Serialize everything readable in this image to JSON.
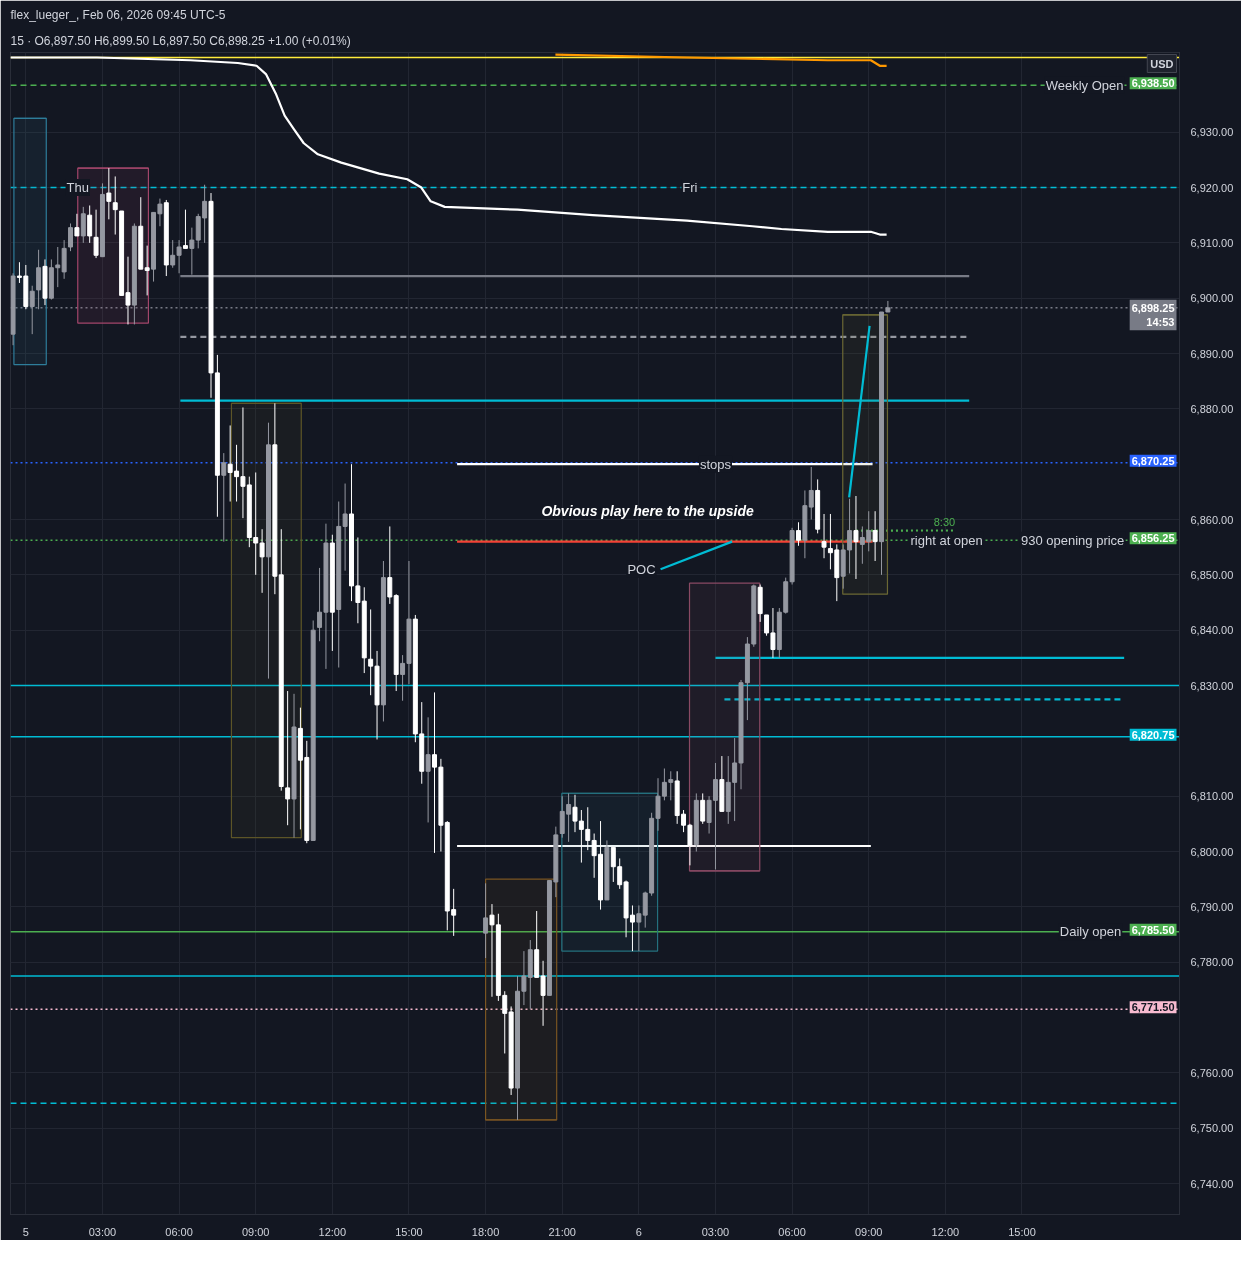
{
  "chart_data": {
    "type": "candlestick",
    "title": "flex_lueger_, Feb 06, 2026 09:45 UTC-5",
    "subtitle": "15 · O6,897.50 H6,899.50 L6,897.50 C6,898.25 +1.00 (+0.01%)",
    "ylabel": "USD",
    "x": [
      "2026-02-04T23:30",
      "2026-02-04T23:45",
      "2026-02-05T00:00",
      "2026-02-05T00:15",
      "2026-02-05T00:30",
      "2026-02-05T00:45",
      "2026-02-05T01:00",
      "2026-02-05T01:15",
      "2026-02-05T01:30",
      "2026-02-05T01:45",
      "2026-02-05T02:00",
      "2026-02-05T02:15",
      "2026-02-05T02:30",
      "2026-02-05T02:45",
      "2026-02-05T03:00",
      "2026-02-05T03:15",
      "2026-02-05T03:30",
      "2026-02-05T03:45",
      "2026-02-05T04:00",
      "2026-02-05T04:15",
      "2026-02-05T04:30",
      "2026-02-05T04:45",
      "2026-02-05T05:00",
      "2026-02-05T05:15",
      "2026-02-05T05:30",
      "2026-02-05T05:45",
      "2026-02-05T06:00",
      "2026-02-05T06:15",
      "2026-02-05T06:30",
      "2026-02-05T06:45",
      "2026-02-05T07:00",
      "2026-02-05T07:15",
      "2026-02-05T07:30",
      "2026-02-05T07:45",
      "2026-02-05T08:00",
      "2026-02-05T08:15",
      "2026-02-05T08:30",
      "2026-02-05T08:45",
      "2026-02-05T09:00",
      "2026-02-05T09:15",
      "2026-02-05T09:30",
      "2026-02-05T09:45",
      "2026-02-05T10:00",
      "2026-02-05T10:15",
      "2026-02-05T10:30",
      "2026-02-05T10:45",
      "2026-02-05T11:00",
      "2026-02-05T11:15",
      "2026-02-05T11:30",
      "2026-02-05T11:45",
      "2026-02-05T12:00",
      "2026-02-05T12:15",
      "2026-02-05T12:30",
      "2026-02-05T12:45",
      "2026-02-05T13:00",
      "2026-02-05T13:15",
      "2026-02-05T13:30",
      "2026-02-05T13:45",
      "2026-02-05T14:00",
      "2026-02-05T14:15",
      "2026-02-05T14:30",
      "2026-02-05T14:45",
      "2026-02-05T15:00",
      "2026-02-05T15:15",
      "2026-02-05T15:30",
      "2026-02-05T15:45",
      "2026-02-05T16:00",
      "2026-02-05T16:15",
      "2026-02-05T16:30",
      "2026-02-05T16:45",
      "2026-02-05T18:00",
      "2026-02-05T18:15",
      "2026-02-05T18:30",
      "2026-02-05T18:45",
      "2026-02-05T19:00",
      "2026-02-05T19:15",
      "2026-02-05T19:30",
      "2026-02-05T19:45",
      "2026-02-05T20:00",
      "2026-02-05T20:15",
      "2026-02-05T20:30",
      "2026-02-05T20:45",
      "2026-02-05T21:00",
      "2026-02-05T21:15",
      "2026-02-05T21:30",
      "2026-02-05T21:45",
      "2026-02-05T22:00",
      "2026-02-05T22:15",
      "2026-02-05T22:30",
      "2026-02-05T22:45",
      "2026-02-05T23:00",
      "2026-02-05T23:15",
      "2026-02-05T23:30",
      "2026-02-05T23:45",
      "2026-02-06T00:00",
      "2026-02-06T00:15",
      "2026-02-06T00:30",
      "2026-02-06T00:45",
      "2026-02-06T01:00",
      "2026-02-06T01:15",
      "2026-02-06T01:30",
      "2026-02-06T01:45",
      "2026-02-06T02:00",
      "2026-02-06T02:15",
      "2026-02-06T02:30",
      "2026-02-06T02:45",
      "2026-02-06T03:00",
      "2026-02-06T03:15",
      "2026-02-06T03:30",
      "2026-02-06T03:45",
      "2026-02-06T04:00",
      "2026-02-06T04:15",
      "2026-02-06T04:30",
      "2026-02-06T04:45",
      "2026-02-06T05:00",
      "2026-02-06T05:15",
      "2026-02-06T05:30",
      "2026-02-06T05:45",
      "2026-02-06T06:00",
      "2026-02-06T06:15",
      "2026-02-06T06:30",
      "2026-02-06T06:45",
      "2026-02-06T07:00",
      "2026-02-06T07:15",
      "2026-02-06T07:30",
      "2026-02-06T07:45",
      "2026-02-06T08:00",
      "2026-02-06T08:15",
      "2026-02-06T08:30",
      "2026-02-06T08:45",
      "2026-02-06T09:00",
      "2026-02-06T09:15",
      "2026-02-06T09:30",
      "2026-02-06T09:45"
    ],
    "ohlc": [
      [
        6893.5,
        6904.5,
        6891.5,
        6904
      ],
      [
        6904,
        6906.5,
        6902.75,
        6903.75
      ],
      [
        6904,
        6906,
        6898,
        6898.5
      ],
      [
        6898.5,
        6902.25,
        6893.5,
        6901.25
      ],
      [
        6901.5,
        6908.75,
        6898,
        6905.5
      ],
      [
        6905.75,
        6907,
        6898.75,
        6900
      ],
      [
        6900,
        6907,
        6899.75,
        6905.5
      ],
      [
        6905.5,
        6909.25,
        6902,
        6906
      ],
      [
        6904.75,
        6910.5,
        6903.5,
        6909
      ],
      [
        6909.25,
        6913.5,
        6908.5,
        6912.75
      ],
      [
        6912.75,
        6915.25,
        6911.25,
        6911.25
      ],
      [
        6911.25,
        6916.5,
        6910,
        6915.25
      ],
      [
        6915,
        6916.75,
        6910,
        6911.25
      ],
      [
        6911,
        6916,
        6907.25,
        6907.75
      ],
      [
        6907.5,
        6920.75,
        6907.5,
        6918.75
      ],
      [
        6919,
        6923.5,
        6914.25,
        6917.5
      ],
      [
        6917.25,
        6922,
        6911.5,
        6916
      ],
      [
        6915.75,
        6915.75,
        6900.5,
        6900.5
      ],
      [
        6901,
        6907.5,
        6895.25,
        6898.75
      ],
      [
        6898.75,
        6913.5,
        6895.25,
        6913
      ],
      [
        6913,
        6918.25,
        6905.25,
        6905.25
      ],
      [
        6905.5,
        6909.5,
        6900.5,
        6905
      ],
      [
        6905.25,
        6915.5,
        6903,
        6915.5
      ],
      [
        6915.25,
        6918,
        6913,
        6917
      ],
      [
        6917.25,
        6917.75,
        6904,
        6906
      ],
      [
        6906,
        6910.5,
        6905.5,
        6907.75
      ],
      [
        6907.75,
        6910.5,
        6904.5,
        6909.25
      ],
      [
        6909.5,
        6916,
        6909,
        6909
      ],
      [
        6909,
        6912.75,
        6904.25,
        6910.5
      ],
      [
        6910.5,
        6915.25,
        6909,
        6914.75
      ],
      [
        6914.5,
        6920.5,
        6910,
        6917.5
      ],
      [
        6917.5,
        6919,
        6882,
        6886.5
      ],
      [
        6886.5,
        6889.75,
        6860.5,
        6868
      ],
      [
        6868,
        6872,
        6856,
        6870.25
      ],
      [
        6870,
        6877,
        6863.25,
        6868.5
      ],
      [
        6868.75,
        6873.5,
        6863.25,
        6867.75
      ],
      [
        6867.75,
        6880.25,
        6860.25,
        6866
      ],
      [
        6866.25,
        6867.75,
        6855,
        6856.75
      ],
      [
        6856.75,
        6868.5,
        6850,
        6855.75
      ],
      [
        6855.75,
        6858.25,
        6846.75,
        6853.25
      ],
      [
        6853.25,
        6877.5,
        6831.25,
        6873.5
      ],
      [
        6873.5,
        6881,
        6846.5,
        6849.75
      ],
      [
        6850,
        6858.25,
        6811,
        6811.75
      ],
      [
        6811.5,
        6829,
        6804.75,
        6809.5
      ],
      [
        6809.5,
        6828.5,
        6802.5,
        6822.5
      ],
      [
        6822.25,
        6826,
        6804,
        6816.5
      ],
      [
        6817,
        6820,
        6801.5,
        6802
      ],
      [
        6802,
        6841.75,
        6802,
        6840
      ],
      [
        6840.5,
        6851.25,
        6838,
        6843.25
      ],
      [
        6843.25,
        6859.25,
        6833,
        6855.75
      ],
      [
        6855.75,
        6857.25,
        6836.25,
        6843.25
      ],
      [
        6843.75,
        6863.25,
        6833.25,
        6858.75
      ],
      [
        6858.75,
        6866.5,
        6850.75,
        6861
      ],
      [
        6861,
        6870,
        6845.25,
        6848
      ],
      [
        6848,
        6856.75,
        6841.25,
        6845
      ],
      [
        6845.25,
        6847.75,
        6832.25,
        6835
      ],
      [
        6834.75,
        6843.75,
        6828.25,
        6833.5
      ],
      [
        6833.5,
        6836.25,
        6820.25,
        6826.5
      ],
      [
        6826.5,
        6852.5,
        6823.5,
        6849.5
      ],
      [
        6849.5,
        6858.75,
        6844.75,
        6846
      ],
      [
        6846.25,
        6846.5,
        6829,
        6832
      ],
      [
        6832,
        6835.5,
        6827.25,
        6834
      ],
      [
        6834,
        6852.5,
        6830.25,
        6842
      ],
      [
        6842,
        6842.75,
        6819.75,
        6821.25
      ],
      [
        6821.25,
        6827,
        6812.25,
        6814.5
      ],
      [
        6814.5,
        6824.25,
        6805.25,
        6817.5
      ],
      [
        6817.5,
        6828.75,
        6799.75,
        6815.25
      ],
      [
        6815.25,
        6816.75,
        6800,
        6804.75
      ],
      [
        6805.25,
        6805.5,
        6785.75,
        6789.25
      ],
      [
        6789.5,
        6793.25,
        6784.75,
        6788.5
      ],
      [
        6785.25,
        6794.25,
        6780.75,
        6788
      ],
      [
        6788.5,
        6790.5,
        6773.75,
        6786.75
      ],
      [
        6786.75,
        6788.75,
        6773,
        6774
      ],
      [
        6774,
        6774.75,
        6763.5,
        6770.75
      ],
      [
        6771,
        6772,
        6756,
        6757.25
      ],
      [
        6757.25,
        6777.5,
        6751.5,
        6774.75
      ],
      [
        6774.75,
        6782,
        6772.25,
        6777.5
      ],
      [
        6777.25,
        6784,
        6771.5,
        6782.25
      ],
      [
        6782.25,
        6789.25,
        6777.25,
        6777.25
      ],
      [
        6777.5,
        6780.25,
        6768.5,
        6774
      ],
      [
        6774,
        6794.75,
        6774,
        6794.75
      ],
      [
        6794.5,
        6804.5,
        6791.75,
        6803
      ],
      [
        6803.25,
        6810,
        6802.5,
        6807.25
      ],
      [
        6806.75,
        6810.5,
        6801.75,
        6808.5
      ],
      [
        6808,
        6810.25,
        6803.5,
        6805.5
      ],
      [
        6805.5,
        6807.5,
        6798,
        6804
      ],
      [
        6804,
        6808,
        6800.25,
        6802
      ],
      [
        6802,
        6803.25,
        6795.25,
        6799.25
      ],
      [
        6799.5,
        6805.5,
        6789.5,
        6791.25
      ],
      [
        6791.25,
        6802,
        6791.25,
        6800.75
      ],
      [
        6800.75,
        6800.75,
        6794.5,
        6797.25
      ],
      [
        6797.25,
        6798.75,
        6793.25,
        6794
      ],
      [
        6794.5,
        6794.75,
        6784.5,
        6788
      ],
      [
        6788.5,
        6790.25,
        6782,
        6787.25
      ],
      [
        6787.25,
        6790.25,
        6782,
        6788.75
      ],
      [
        6788.5,
        6792.75,
        6786.25,
        6792.5
      ],
      [
        6792.5,
        6807,
        6792,
        6806
      ],
      [
        6806,
        6813.25,
        6803.75,
        6810
      ],
      [
        6810,
        6815,
        6809.25,
        6812.5
      ],
      [
        6812.5,
        6814.5,
        6809.25,
        6813
      ],
      [
        6812.75,
        6814.5,
        6805,
        6806.5
      ],
      [
        6806.75,
        6807.5,
        6803.5,
        6804.75
      ],
      [
        6804.75,
        6805,
        6797.5,
        6801
      ],
      [
        6801.25,
        6810.5,
        6800,
        6809.25
      ],
      [
        6809.25,
        6810.5,
        6805,
        6805.5
      ],
      [
        6805.25,
        6810,
        6803.25,
        6809.25
      ],
      [
        6809.25,
        6816,
        6796.75,
        6813
      ],
      [
        6813,
        6817.25,
        6807.25,
        6807.25
      ],
      [
        6807.25,
        6817.25,
        6805,
        6812.5
      ],
      [
        6812.5,
        6820.5,
        6805.5,
        6816
      ],
      [
        6816,
        6831,
        6811.25,
        6830.5
      ],
      [
        6830.5,
        6838.75,
        6823.75,
        6837.5
      ],
      [
        6837.5,
        6848.25,
        6837,
        6848
      ],
      [
        6847.75,
        6848.25,
        6841.5,
        6843
      ],
      [
        6842.75,
        6842.75,
        6839,
        6839.5
      ],
      [
        6839.5,
        6844,
        6835,
        6836.5
      ],
      [
        6836.5,
        6844,
        6835,
        6843.25
      ],
      [
        6843.25,
        6849.5,
        6843,
        6848.75
      ],
      [
        6848.75,
        6858.5,
        6848.25,
        6858
      ],
      [
        6858,
        6859.5,
        6855.25,
        6856.25
      ],
      [
        6856.25,
        6865.25,
        6853,
        6862.5
      ],
      [
        6862.25,
        6869.5,
        6860,
        6865.25
      ],
      [
        6865.25,
        6867.25,
        6857.5,
        6858.25
      ],
      [
        6856,
        6861,
        6853,
        6855
      ],
      [
        6854.75,
        6861,
        6851,
        6854
      ],
      [
        6854.5,
        6855.5,
        6845.25,
        6849.5
      ],
      [
        6849.75,
        6855.5,
        6847.5,
        6854.5
      ],
      [
        6854.5,
        6863.75,
        6850.25,
        6858
      ],
      [
        6858,
        6864.25,
        6849.25,
        6856
      ],
      [
        6855.5,
        6858.75,
        6852,
        6856.75
      ],
      [
        6856,
        6861.5,
        6854.25,
        6858
      ],
      [
        6858,
        6861.5,
        6852.5,
        6856
      ],
      [
        6856,
        6897.5,
        6850,
        6897.5
      ],
      [
        6897.5,
        6899.5,
        6897.5,
        6898.25
      ]
    ],
    "colors": [
      "#9598a1",
      "#ffffff",
      "#ffffff",
      "#9598a1",
      "#9598a1",
      "#ffffff",
      "#9598a1",
      "#9598a1",
      "#9598a1",
      "#9598a1",
      "#ffffff",
      "#9598a1",
      "#ffffff",
      "#ffffff",
      "#9598a1",
      "#ffffff",
      "#ffffff",
      "#ffffff",
      "#ffffff",
      "#9598a1",
      "#ffffff",
      "#ffffff",
      "#9598a1",
      "#9598a1",
      "#ffffff",
      "#9598a1",
      "#9598a1",
      "#ffffff",
      "#9598a1",
      "#9598a1",
      "#9598a1",
      "#ffffff",
      "#ffffff",
      "#9598a1",
      "#ffffff",
      "#ffffff",
      "#ffffff",
      "#ffffff",
      "#ffffff",
      "#ffffff",
      "#9598a1",
      "#ffffff",
      "#ffffff",
      "#ffffff",
      "#9598a1",
      "#ffffff",
      "#ffffff",
      "#9598a1",
      "#9598a1",
      "#9598a1",
      "#ffffff",
      "#9598a1",
      "#9598a1",
      "#ffffff",
      "#ffffff",
      "#ffffff",
      "#ffffff",
      "#ffffff",
      "#9598a1",
      "#ffffff",
      "#ffffff",
      "#9598a1",
      "#9598a1",
      "#ffffff",
      "#ffffff",
      "#9598a1",
      "#ffffff",
      "#ffffff",
      "#ffffff",
      "#ffffff",
      "#9598a1",
      "#ffffff",
      "#ffffff",
      "#ffffff",
      "#ffffff",
      "#9598a1",
      "#9598a1",
      "#9598a1",
      "#ffffff",
      "#ffffff",
      "#9598a1",
      "#9598a1",
      "#9598a1",
      "#9598a1",
      "#ffffff",
      "#ffffff",
      "#ffffff",
      "#ffffff",
      "#ffffff",
      "#9598a1",
      "#ffffff",
      "#ffffff",
      "#ffffff",
      "#ffffff",
      "#9598a1",
      "#9598a1",
      "#9598a1",
      "#9598a1",
      "#9598a1",
      "#9598a1",
      "#ffffff",
      "#ffffff",
      "#ffffff",
      "#9598a1",
      "#ffffff",
      "#9598a1",
      "#9598a1",
      "#ffffff",
      "#9598a1",
      "#9598a1",
      "#9598a1",
      "#9598a1",
      "#9598a1",
      "#ffffff",
      "#ffffff",
      "#ffffff",
      "#9598a1",
      "#9598a1",
      "#9598a1",
      "#ffffff",
      "#9598a1",
      "#9598a1",
      "#ffffff",
      "#ffffff",
      "#ffffff",
      "#ffffff",
      "#9598a1",
      "#9598a1",
      "#ffffff",
      "#9598a1",
      "#9598a1",
      "#ffffff",
      "#9598a1",
      "#9598a1"
    ],
    "series": [
      {
        "type": "line",
        "color": "#ffffff",
        "x": [
          "2026-02-04T23:24",
          "2026-02-05T02:47",
          "2026-02-05T06:27",
          "2026-02-05T08:18",
          "2026-02-05T09:02",
          "2026-02-05T09:24",
          "2026-02-05T09:47",
          "2026-02-05T10:08",
          "2026-02-05T10:30",
          "2026-02-05T10:53",
          "2026-02-05T11:26",
          "2026-02-05T12:21",
          "2026-02-05T13:50",
          "2026-02-05T14:56",
          "2026-02-05T15:29",
          "2026-02-05T15:51",
          "2026-02-05T16:24",
          "2026-02-05T19:15",
          "2026-02-05T22:12",
          "2026-02-06T01:53",
          "2026-02-06T04:27",
          "2026-02-06T05:35",
          "2026-02-06T07:24",
          "2026-02-06T09:05",
          "2026-02-06T09:26",
          "2026-02-06T09:42"
        ],
        "values": [
          6943.5,
          6943.5,
          6943,
          6942.5,
          6942,
          6940.5,
          6937,
          6933,
          6930.5,
          6928,
          6926,
          6924.5,
          6922.5,
          6921.5,
          6920,
          6917.5,
          6916.5,
          6916,
          6915,
          6914,
          6913,
          6912.5,
          6912,
          6912,
          6911.5,
          6911.5
        ]
      },
      {
        "type": "line",
        "color": "#ff9800",
        "x": [
          "2026-02-05T20:44",
          "2026-02-06T01:53",
          "2026-02-06T07:24",
          "2026-02-06T09:05",
          "2026-02-06T09:26",
          "2026-02-06T09:42"
        ],
        "values": [
          6944,
          6943.5,
          6943,
          6943,
          6942,
          6942
        ]
      },
      {
        "type": "line",
        "color": "#787b86",
        "x": [
          "2026-02-05T06:03",
          "2026-02-06T12:56"
        ],
        "values": [
          6904,
          6904
        ]
      },
      {
        "type": "line",
        "color": "#9598a1",
        "line_style": "dashed",
        "x": [
          "2026-02-05T06:03",
          "2026-02-06T12:56"
        ],
        "values": [
          6893,
          6893
        ]
      },
      {
        "type": "line",
        "color": "#00bcd4",
        "x": [
          "2026-02-05T06:03",
          "2026-02-06T12:56"
        ],
        "values": [
          6881.5,
          6881.5
        ]
      },
      {
        "type": "line",
        "color": "#ffffff",
        "x": [
          "2026-02-05T16:53",
          "2026-02-06T09:09"
        ],
        "values": [
          6870,
          6870
        ]
      },
      {
        "type": "line",
        "color": "#f44336",
        "x": [
          "2026-02-05T16:53",
          "2026-02-06T09:09"
        ],
        "values": [
          6856,
          6856
        ]
      },
      {
        "type": "line",
        "color": "#ffffff",
        "x": [
          "2026-02-05T16:53",
          "2026-02-06T09:05"
        ],
        "values": [
          6801,
          6801
        ]
      },
      {
        "type": "line",
        "color": "#00bcd4",
        "x": [
          "2026-02-06T03:00",
          "2026-02-06T19:00"
        ],
        "values": [
          6835,
          6835
        ]
      },
      {
        "type": "line",
        "color": "#00bcd4",
        "line_style": "dashed",
        "x": [
          "2026-02-06T03:21",
          "2026-02-06T19:00"
        ],
        "values": [
          6827.5,
          6827.5
        ]
      },
      {
        "type": "line",
        "name": "8:30",
        "color": "#4caf50",
        "line_style": "dotted",
        "x": [
          "2026-02-06T08:30",
          "2026-02-06T12:23"
        ],
        "values": [
          6858,
          6858
        ]
      },
      {
        "type": "line",
        "color": "#2e7d9a",
        "x": [
          "2026-02-04T23:32",
          "2026-02-05T00:48"
        ],
        "values": [
          6932.5,
          6932.5
        ],
        "lower": [
          6888,
          6888
        ],
        "upper": [
          6932.5,
          6932.5
        ]
      },
      {
        "type": "line",
        "color": "#a3466b",
        "x": [
          "2026-02-05T02:02",
          "2026-02-05T04:48"
        ],
        "values": [
          6923.5,
          6923.5
        ],
        "lower": [
          6895.5,
          6895.5
        ],
        "upper": [
          6923.5,
          6923.5
        ]
      },
      {
        "type": "line",
        "color": "#5d5527",
        "x": [
          "2026-02-05T08:03",
          "2026-02-05T10:47"
        ],
        "values": [
          6881,
          6881
        ],
        "lower": [
          6802.5,
          6802.5
        ],
        "upper": [
          6881,
          6881
        ]
      },
      {
        "type": "line",
        "color": "#7a5522",
        "x": [
          "2026-02-05T18:00",
          "2026-02-05T20:47"
        ],
        "values": [
          6751.5,
          6751.5
        ],
        "lower": [
          6751.5,
          6751.5
        ],
        "upper": [
          6795,
          6795
        ]
      },
      {
        "type": "line",
        "color": "#24707e",
        "x": [
          "2026-02-05T20:59",
          "2026-02-06T00:44"
        ],
        "values": [
          6810.5,
          6810.5
        ],
        "lower": [
          6782,
          6782
        ],
        "upper": [
          6810.5,
          6810.5
        ]
      },
      {
        "type": "line",
        "color": "#8a4a64",
        "x": [
          "2026-02-06T01:59",
          "2026-02-06T04:44"
        ],
        "values": [
          6796.5,
          6796.5
        ],
        "lower": [
          6796.5,
          6796.5
        ],
        "upper": [
          6848.5,
          6848.5
        ]
      },
      {
        "type": "line",
        "color": "#6b6834",
        "x": [
          "2026-02-06T07:59",
          "2026-02-06T09:44"
        ],
        "values": [
          6897,
          6897
        ],
        "lower": [
          6846.5,
          6846.5
        ],
        "upper": [
          6897,
          6897
        ]
      },
      {
        "type": "line",
        "color": "#00bcd4",
        "x": [
          "2026-02-06T00:51",
          "2026-02-06T03:39"
        ],
        "values": [
          6851,
          6856
        ]
      },
      {
        "type": "line",
        "color": "#00bcd4",
        "x": [
          "2026-02-06T08:14",
          "2026-02-06T09:02"
        ],
        "values": [
          6864,
          6895
        ]
      }
    ],
    "ref_lines": [
      {
        "axis": "y",
        "value": 6943.5,
        "color": "#ffeb3b"
      },
      {
        "axis": "y",
        "value": 6938.5,
        "label": "6,938.50",
        "color": "#4caf50",
        "line_style": "dashed"
      },
      {
        "axis": "y",
        "value": 6920,
        "color": "#00bcd4",
        "line_style": "dashed"
      },
      {
        "axis": "y",
        "value": 6898.25,
        "label": "6,898.25\n14:53",
        "color": "#787b86",
        "line_style": "dotted"
      },
      {
        "axis": "y",
        "value": 6870.25,
        "label": "6,870.25",
        "color": "#2962ff",
        "line_style": "dotted"
      },
      {
        "axis": "y",
        "value": 6856.25,
        "label": "6,856.25",
        "color": "#4caf50",
        "line_style": "dotted"
      },
      {
        "axis": "y",
        "value": 6830,
        "color": "#00bcd4"
      },
      {
        "axis": "y",
        "value": 6820.75,
        "label": "6,820.75",
        "color": "#00bcd4"
      },
      {
        "axis": "y",
        "value": 6785.5,
        "label": "6,785.50",
        "color": "#4caf50"
      },
      {
        "axis": "y",
        "value": 6777.5,
        "color": "#00bcd4"
      },
      {
        "axis": "y",
        "value": 6771.5,
        "label": "6,771.50",
        "color": "#f8bbd0",
        "line_style": "dotted"
      },
      {
        "axis": "y",
        "value": 6754.5,
        "color": "#00bcd4",
        "line_style": "dashed"
      }
    ],
    "annotations": [
      {
        "text": "Thu",
        "x": "2026-02-05T02:02",
        "y": 6920
      },
      {
        "text": "Fri",
        "x": "2026-02-06T02:00",
        "y": 6920
      },
      {
        "text": "Weekly Open",
        "x": "2026-02-06T17:27",
        "y": 6938.5
      },
      {
        "text": "stops",
        "x": "2026-02-06T03:00",
        "y": 6870
      },
      {
        "text": "POC",
        "x": "2026-02-06T00:51",
        "y": 6851
      },
      {
        "text": "right at open",
        "x": "2026-02-06T12:03",
        "y": 6856.25
      },
      {
        "text": "930 opening price",
        "x": "2026-02-06T16:59",
        "y": 6856.25
      },
      {
        "text": "Daily open",
        "x": "2026-02-06T17:41",
        "y": 6785.5
      },
      "Obvious play here to the upside"
    ],
    "xlim": [
      "2026-02-04T23:24",
      "2026-02-06T21:10"
    ],
    "xticks": [
      {
        "value": "2026-02-05",
        "label": "5"
      },
      {
        "value": "2026-02-05T03:00",
        "label": "03:00"
      },
      {
        "value": "2026-02-05T06:00",
        "label": "06:00"
      },
      {
        "value": "2026-02-05T09:00",
        "label": "09:00"
      },
      {
        "value": "2026-02-05T12:00",
        "label": "12:00"
      },
      {
        "value": "2026-02-05T15:00",
        "label": "15:00"
      },
      {
        "value": "2026-02-05T18:00",
        "label": "18:00"
      },
      {
        "value": "2026-02-05T21:00",
        "label": "21:00"
      },
      {
        "value": "2026-02-06",
        "label": "6"
      },
      {
        "value": "2026-02-06T03:00",
        "label": "03:00"
      },
      {
        "value": "2026-02-06T06:00",
        "label": "06:00"
      },
      {
        "value": "2026-02-06T09:00",
        "label": "09:00"
      },
      {
        "value": "2026-02-06T12:00",
        "label": "12:00"
      },
      {
        "value": "2026-02-06T15:00",
        "label": "15:00"
      }
    ],
    "ylim": [
      6734.4,
      6944.4
    ],
    "yticks": [
      {
        "value": 6740,
        "label": "6,740.00"
      },
      {
        "value": 6750,
        "label": "6,750.00"
      },
      {
        "value": 6760,
        "label": "6,760.00"
      },
      {
        "value": 6780,
        "label": "6,780.00"
      },
      {
        "value": 6790,
        "label": "6,790.00"
      },
      {
        "value": 6800,
        "label": "6,800.00"
      },
      {
        "value": 6810,
        "label": "6,810.00"
      },
      {
        "value": 6830,
        "label": "6,830.00"
      },
      {
        "value": 6840,
        "label": "6,840.00"
      },
      {
        "value": 6850,
        "label": "6,850.00"
      },
      {
        "value": 6860,
        "label": "6,860.00"
      },
      {
        "value": 6880,
        "label": "6,880.00"
      },
      {
        "value": 6890,
        "label": "6,890.00"
      },
      {
        "value": 6900,
        "label": "6,900.00"
      },
      {
        "value": 6910,
        "label": "6,910.00"
      },
      {
        "value": 6920,
        "label": "6,920.00"
      },
      {
        "value": 6930,
        "label": "6,930.00"
      }
    ],
    "grid": true
  }
}
